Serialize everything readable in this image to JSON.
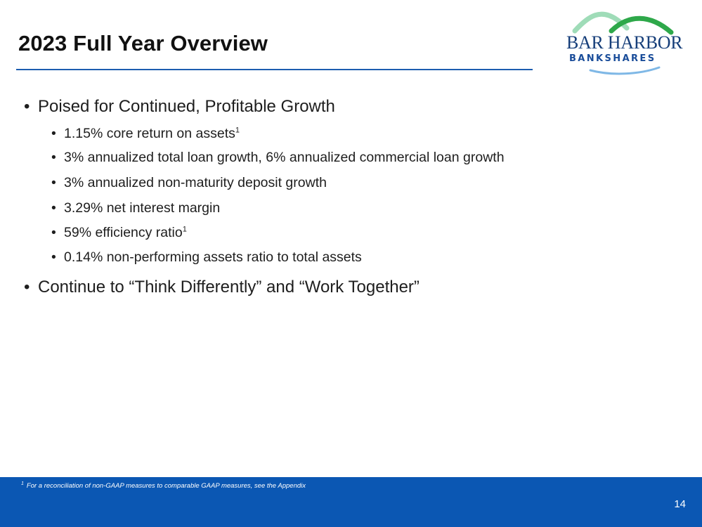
{
  "slide": {
    "title": "2023 Full Year Overview",
    "page_number": "14"
  },
  "logo": {
    "line1": "BAR HARBOR",
    "line2": "BANKSHARES",
    "colors": {
      "navy": "#173f7a",
      "green": "#2ea84a",
      "mint": "#9fdcb8",
      "blue": "#3b8fd1"
    }
  },
  "bullets": [
    {
      "text": "Poised for Continued, Profitable Growth",
      "sub": [
        {
          "text": "1.15% core return on assets",
          "footnote": "1"
        },
        {
          "text": "3% annualized total loan growth, 6% annualized commercial loan growth"
        },
        {
          "text": "3% annualized non-maturity deposit growth"
        },
        {
          "text": "3.29% net interest margin"
        },
        {
          "text": "59% efficiency ratio",
          "footnote": "1"
        },
        {
          "text": "0.14% non-performing assets ratio to total assets"
        }
      ]
    },
    {
      "text": "Continue to “Think Differently” and “Work Together”"
    }
  ],
  "footnote": {
    "marker": "1",
    "text": "For a reconciliation of non-GAAP measures to comparable GAAP measures, see the Appendix"
  },
  "theme": {
    "accent": "#0b57b3",
    "rule": "#1c5db0"
  }
}
